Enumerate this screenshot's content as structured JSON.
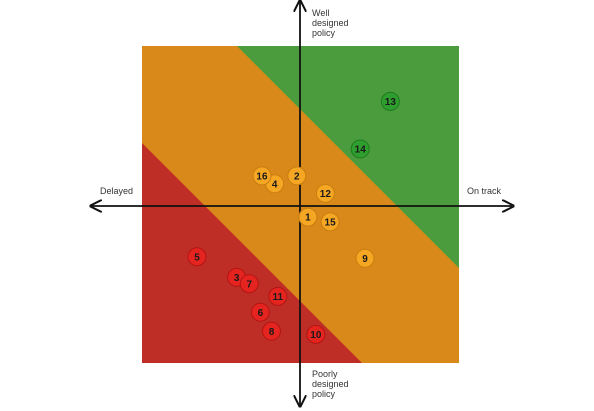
{
  "axes": {
    "top_label": "Well\ndesigned\npolicy",
    "bottom_label": "Poorly\ndesigned\npolicy",
    "left_label": "Delayed",
    "right_label": "On track"
  },
  "colors": {
    "green_zone": "#4a9c3c",
    "amber_zone": "#d9891a",
    "red_zone": "#bf2e26",
    "green_marker": "#2e9e2e",
    "amber_marker": "#f5a623",
    "red_marker": "#e52420",
    "axis_line": "#111111"
  },
  "markers": [
    {
      "label": "1",
      "category": "amber",
      "progress": 0.05,
      "design": -0.07
    },
    {
      "label": "2",
      "category": "amber",
      "progress": -0.02,
      "design": 0.19
    },
    {
      "label": "3",
      "category": "red",
      "progress": -0.4,
      "design": -0.45
    },
    {
      "label": "4",
      "category": "amber",
      "progress": -0.16,
      "design": 0.14
    },
    {
      "label": "5",
      "category": "red",
      "progress": -0.65,
      "design": -0.32
    },
    {
      "label": "6",
      "category": "red",
      "progress": -0.25,
      "design": -0.67
    },
    {
      "label": "7",
      "category": "red",
      "progress": -0.32,
      "design": -0.49
    },
    {
      "label": "8",
      "category": "red",
      "progress": -0.18,
      "design": -0.79
    },
    {
      "label": "9",
      "category": "amber",
      "progress": 0.41,
      "design": -0.33
    },
    {
      "label": "10",
      "category": "red",
      "progress": 0.1,
      "design": -0.81
    },
    {
      "label": "11",
      "category": "red",
      "progress": -0.14,
      "design": -0.57
    },
    {
      "label": "12",
      "category": "amber",
      "progress": 0.16,
      "design": 0.08
    },
    {
      "label": "13",
      "category": "green",
      "progress": 0.57,
      "design": 0.66
    },
    {
      "label": "14",
      "category": "green",
      "progress": 0.38,
      "design": 0.36
    },
    {
      "label": "15",
      "category": "amber",
      "progress": 0.19,
      "design": -0.1
    },
    {
      "label": "16",
      "category": "amber",
      "progress": -0.24,
      "design": 0.19
    }
  ]
}
